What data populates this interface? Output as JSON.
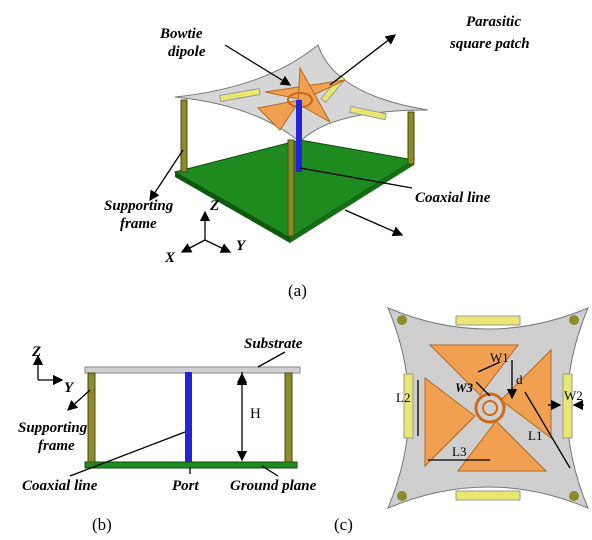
{
  "panel_a": {
    "caption": "(a)",
    "labels": {
      "bowtie_dipole": [
        "Bowtie",
        "dipole"
      ],
      "parasitic_patch": [
        "Parasitic",
        "square patch"
      ],
      "supporting_frame": [
        "Supporting",
        "frame"
      ],
      "coaxial_line": "Coaxial line"
    },
    "axes": {
      "z": "Z",
      "x": "X",
      "y": "Y"
    }
  },
  "panel_b": {
    "caption": "(b)",
    "labels": {
      "substrate": "Substrate",
      "height": "H",
      "supporting_frame": [
        "Supporting",
        "frame"
      ],
      "coaxial_line": "Coaxial line",
      "port": "Port",
      "ground_plane": "Ground plane"
    },
    "axes": {
      "z": "Z",
      "y": "Y"
    }
  },
  "panel_c": {
    "caption": "(c)",
    "dimensions": {
      "w1": "W1",
      "w2": "W2",
      "w3": "W3",
      "d": "d",
      "l1": "L1",
      "l2": "L2",
      "l3": "L3"
    }
  }
}
